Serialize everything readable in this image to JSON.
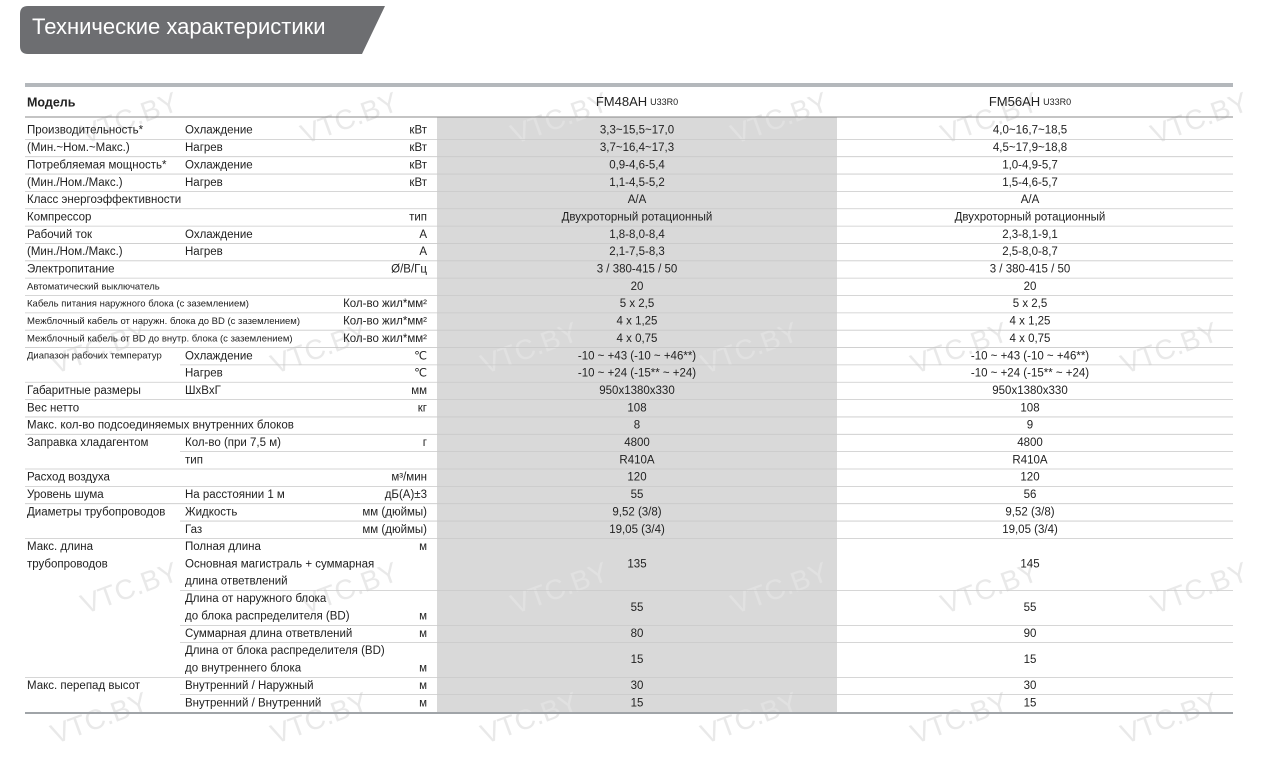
{
  "header": {
    "title": "Технические характеристики"
  },
  "watermark": "VTC.BY",
  "table": {
    "model_label": "Модель",
    "models": [
      {
        "name": "FM48AH",
        "suffix": "U33R0"
      },
      {
        "name": "FM56AH",
        "suffix": "U33R0"
      }
    ],
    "rows": [
      {
        "label": "Производительность*",
        "sub": "Охлаждение",
        "unit": "кВт",
        "values": [
          "3,3~15,5~17,0",
          "4,0~16,7~18,5"
        ]
      },
      {
        "label": "(Мин.~Ном.~Макс.)",
        "sub": "Нагрев",
        "unit": "кВт",
        "values": [
          "3,7~16,4~17,3",
          "4,5~17,9~18,8"
        ]
      },
      {
        "label": "Потребляемая мощность*",
        "sub": "Охлаждение",
        "unit": "кВт",
        "values": [
          "0,9-4,6-5,4",
          "1,0-4,9-5,7"
        ]
      },
      {
        "label": "(Мин./Ном./Макс.)",
        "sub": "Нагрев",
        "unit": "кВт",
        "values": [
          "1,1-4,5-5,2",
          "1,5-4,6-5,7"
        ]
      },
      {
        "label": "Класс энергоэффективности",
        "values": [
          "A/A",
          "A/A"
        ]
      },
      {
        "label": "Компрессор",
        "unit": "тип",
        "values": [
          "Двухроторный ротационный",
          "Двухроторный ротационный"
        ]
      },
      {
        "label": "Рабочий ток",
        "sub": "Охлаждение",
        "unit": "А",
        "values": [
          "1,8-8,0-8,4",
          "2,3-8,1-9,1"
        ]
      },
      {
        "label": "(Мин./Ном./Макс.)",
        "sub": "Нагрев",
        "unit": "А",
        "values": [
          "2,1-7,5-8,3",
          "2,5-8,0-8,7"
        ]
      },
      {
        "label": "Электропитание",
        "unit": "Ø/В/Гц",
        "values": [
          "3 / 380-415 / 50",
          "3 / 380-415 / 50"
        ]
      },
      {
        "label": "Автоматический выключатель",
        "values": [
          "20",
          "20"
        ]
      },
      {
        "label": "Кабель питания наружного блока (с заземлением)",
        "unit": "Кол-во жил*мм²",
        "values": [
          "5 x 2,5",
          "5 x 2,5"
        ]
      },
      {
        "label": "Межблочный кабель от наружн. блока до BD (с заземлением)",
        "unit": "Кол-во жил*мм²",
        "values": [
          "4 x 1,25",
          "4 x 1,25"
        ]
      },
      {
        "label": "Межблочный кабель от BD до внутр. блока (с заземлением)",
        "unit": "Кол-во жил*мм²",
        "values": [
          "4 x 0,75",
          "4 x 0,75"
        ]
      },
      {
        "label": "Диапазон рабочих температур",
        "sub": "Охлаждение",
        "unit": "℃",
        "values": [
          "-10 ~ +43 (-10 ~ +46**)",
          "-10 ~ +43 (-10 ~ +46**)"
        ]
      },
      {
        "sub": "Нагрев",
        "unit": "℃",
        "values": [
          "-10 ~ +24 (-15** ~ +24)",
          "-10 ~ +24 (-15** ~ +24)"
        ]
      },
      {
        "label": "Габаритные размеры",
        "sub": "ШхВхГ",
        "unit": "мм",
        "values": [
          "950x1380x330",
          "950x1380x330"
        ]
      },
      {
        "label": "Вес нетто",
        "unit": "кг",
        "values": [
          "108",
          "108"
        ]
      },
      {
        "label": "Макс. кол-во подсоединяемых внутренних блоков",
        "values": [
          "8",
          "9"
        ]
      },
      {
        "label": "Заправка хладагентом",
        "sub": "Кол-во (при 7,5 м)",
        "unit": "г",
        "values": [
          "4800",
          "4800"
        ]
      },
      {
        "sub": "тип",
        "values": [
          "R410A",
          "R410A"
        ]
      },
      {
        "label": "Расход воздуха",
        "unit": "м³/мин",
        "values": [
          "120",
          "120"
        ]
      },
      {
        "label": "Уровень шума",
        "sub": "На расстоянии 1 м",
        "unit": "дБ(А)±3",
        "values": [
          "55",
          "56"
        ]
      },
      {
        "label": "Диаметры трубопроводов",
        "sub": "Жидкость",
        "unit": "мм (дюймы)",
        "values": [
          "9,52 (3/8)",
          "9,52 (3/8)"
        ]
      },
      {
        "sub": "Газ",
        "unit": "мм (дюймы)",
        "values": [
          "19,05 (3/4)",
          "19,05 (3/4)"
        ]
      },
      {
        "label": [
          "Макс. длина",
          "трубопроводов"
        ],
        "sub": [
          "Полная длина",
          "Основная магистраль + суммарная",
          "длина ответвлений"
        ],
        "unit": "м",
        "values": [
          "135",
          "145"
        ]
      },
      {
        "sub": [
          "Длина от наружного блока",
          "до блока распределителя (BD)"
        ],
        "unit": "м",
        "values": [
          "55",
          "55"
        ]
      },
      {
        "sub": "Суммарная длина ответвлений",
        "unit": "м",
        "values": [
          "80",
          "90"
        ]
      },
      {
        "sub": [
          "Длина от блока распределителя (BD)",
          "до внутреннего блока"
        ],
        "unit": "м",
        "values": [
          "15",
          "15"
        ]
      },
      {
        "label": "Макс. перепад высот",
        "sub": "Внутренний / Наружный",
        "unit": "м",
        "values": [
          "30",
          "30"
        ]
      },
      {
        "sub": "Внутренний / Внутренний",
        "unit": "м",
        "values": [
          "15",
          "15"
        ]
      }
    ]
  }
}
